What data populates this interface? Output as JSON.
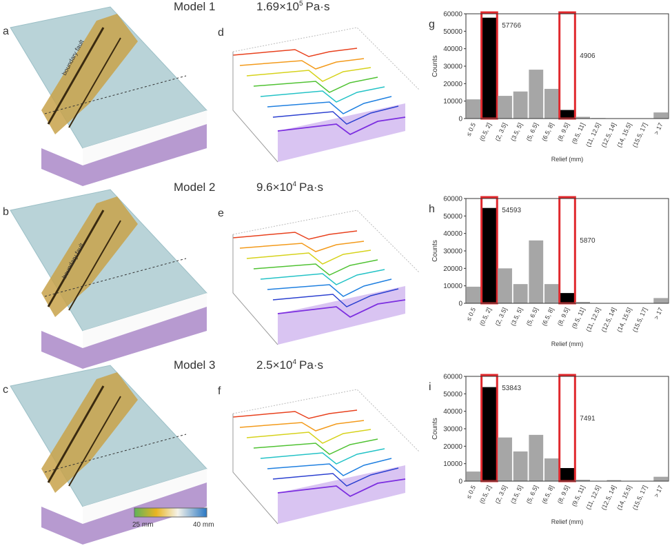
{
  "models": [
    {
      "name": "Model 1",
      "mantissa": "1.69×10",
      "exponent": "5",
      "unit": "Pa·s"
    },
    {
      "name": "Model 2",
      "mantissa": "9.6×10",
      "exponent": "4",
      "unit": "Pa·s"
    },
    {
      "name": "Model 3",
      "mantissa": "2.5×10",
      "exponent": "4",
      "unit": "Pa·s"
    }
  ],
  "terrain_panels": [
    "a",
    "b",
    "c"
  ],
  "profile_panels": [
    "d",
    "e",
    "f"
  ],
  "fault_label": "boundary fault",
  "colorbar": {
    "min_label": "25 mm",
    "max_label": "40 mm"
  },
  "chart_data": [
    {
      "type": "bar",
      "panel": "g",
      "ylabel": "Counts",
      "xlabel": "Relief (mm)",
      "categories": [
        "≤ 0.5",
        "(0.5, 2]",
        "(2, 3.5]",
        "(3.5, 5]",
        "(5, 6.5]",
        "(6.5, 8]",
        "(8, 9.5]",
        "(9.5, 11]",
        "(11, 12.5]",
        "(12.5, 14]",
        "(14, 15.5]",
        "(15.5, 17]",
        "> 17"
      ],
      "values": [
        11000,
        57766,
        13000,
        15500,
        28000,
        17000,
        4906,
        1000,
        300,
        200,
        100,
        100,
        3500
      ],
      "color": "#a6a6a6",
      "highlight": [
        1,
        6
      ],
      "highlight_color": "#000000",
      "frame_color": "#e0282d",
      "ylim": [
        0,
        60000
      ],
      "yticks": [
        0,
        10000,
        20000,
        30000,
        40000,
        50000,
        60000
      ]
    },
    {
      "type": "bar",
      "panel": "h",
      "ylabel": "Counts",
      "xlabel": "Relief (mm)",
      "categories": [
        "≤ 0.5",
        "(0.5, 2]",
        "(2, 3.5]",
        "(3.5, 5]",
        "(5, 6.5]",
        "(6.5, 8]",
        "(8, 9.5]",
        "(9.5, 11]",
        "(11, 12.5]",
        "(12.5, 14]",
        "(14, 15.5]",
        "(15.5, 17]",
        "> 17"
      ],
      "values": [
        9500,
        54593,
        20000,
        11000,
        36000,
        11000,
        5870,
        800,
        200,
        100,
        100,
        100,
        3000
      ],
      "color": "#a6a6a6",
      "highlight": [
        1,
        6
      ],
      "highlight_color": "#000000",
      "frame_color": "#e0282d",
      "ylim": [
        0,
        60000
      ],
      "yticks": [
        0,
        10000,
        20000,
        30000,
        40000,
        50000,
        60000
      ]
    },
    {
      "type": "bar",
      "panel": "i",
      "ylabel": "Counts",
      "xlabel": "Relief (mm)",
      "categories": [
        "≤ 0.5",
        "(0.5, 2]",
        "(2, 3.5]",
        "(3.5, 5]",
        "(5, 6.5]",
        "(6.5, 8]",
        "(8, 9.5]",
        "(9.5, 11]",
        "(11, 12.5]",
        "(12.5, 14]",
        "(14, 15.5]",
        "(15.5, 17]",
        "> 17"
      ],
      "values": [
        5500,
        53843,
        25000,
        17000,
        26500,
        13000,
        7491,
        800,
        200,
        600,
        100,
        100,
        2500
      ],
      "color": "#a6a6a6",
      "highlight": [
        1,
        6
      ],
      "highlight_color": "#000000",
      "frame_color": "#e0282d",
      "ylim": [
        0,
        60000
      ],
      "yticks": [
        0,
        10000,
        20000,
        30000,
        40000,
        50000,
        60000
      ]
    }
  ]
}
